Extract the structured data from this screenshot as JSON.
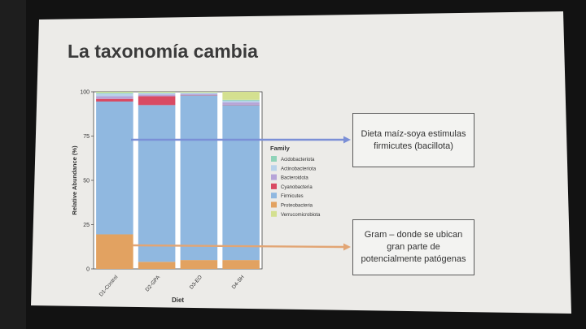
{
  "slide": {
    "title": "La taxonomía cambia",
    "callout_1": "Dieta maíz-soya estimulas\nfirmicutes (bacillota)",
    "callout_2": "Gram – donde se ubican\ngran parte de\npotencialmente patógenas"
  },
  "colors": {
    "Acidobacteriota": "#8fd3b8",
    "Actinobacteriota": "#b8d2ea",
    "Bacteroidota": "#b6a4d8",
    "Cyanobacteria": "#d94a63",
    "Firmicutes": "#90b8e0",
    "Proteobacteria": "#e2a261",
    "Verrucomicrobiota": "#d4e090",
    "arrow_blue": "#7b8fd6",
    "arrow_orange": "#e2a574"
  },
  "chart_data": {
    "type": "bar",
    "stacked": true,
    "categories": [
      "D1-Control",
      "D2-GPA",
      "D3-EO",
      "D4-SH"
    ],
    "xlabel": "Diet",
    "ylabel": "Relative Abundance (%)",
    "ylim": [
      0,
      100
    ],
    "yticks": [
      "0",
      "25",
      "50",
      "75",
      "100"
    ],
    "legend_title": "Family",
    "legend_position": "right",
    "grid": false,
    "series": [
      {
        "name": "Proteobacteria",
        "values": [
          19.5,
          4,
          5,
          5
        ]
      },
      {
        "name": "Firmicutes",
        "values": [
          75,
          88.5,
          93,
          87.5
        ]
      },
      {
        "name": "Cyanobacteria",
        "values": [
          1.5,
          5,
          0.2,
          0.2
        ]
      },
      {
        "name": "Bacteroidota",
        "values": [
          1.5,
          1,
          0.6,
          1.3
        ]
      },
      {
        "name": "Actinobacteriota",
        "values": [
          1.5,
          0.8,
          0.6,
          1
        ]
      },
      {
        "name": "Acidobacteriota",
        "values": [
          0.5,
          0.2,
          0.2,
          0.5
        ]
      },
      {
        "name": "Verrucomicrobiota",
        "values": [
          0.5,
          0.5,
          0.4,
          4.5
        ]
      }
    ],
    "legend_order": [
      "Acidobacteriota",
      "Actinobacteriota",
      "Bacteroidota",
      "Cyanobacteria",
      "Firmicutes",
      "Proteobacteria",
      "Verrucomicrobiota"
    ]
  }
}
